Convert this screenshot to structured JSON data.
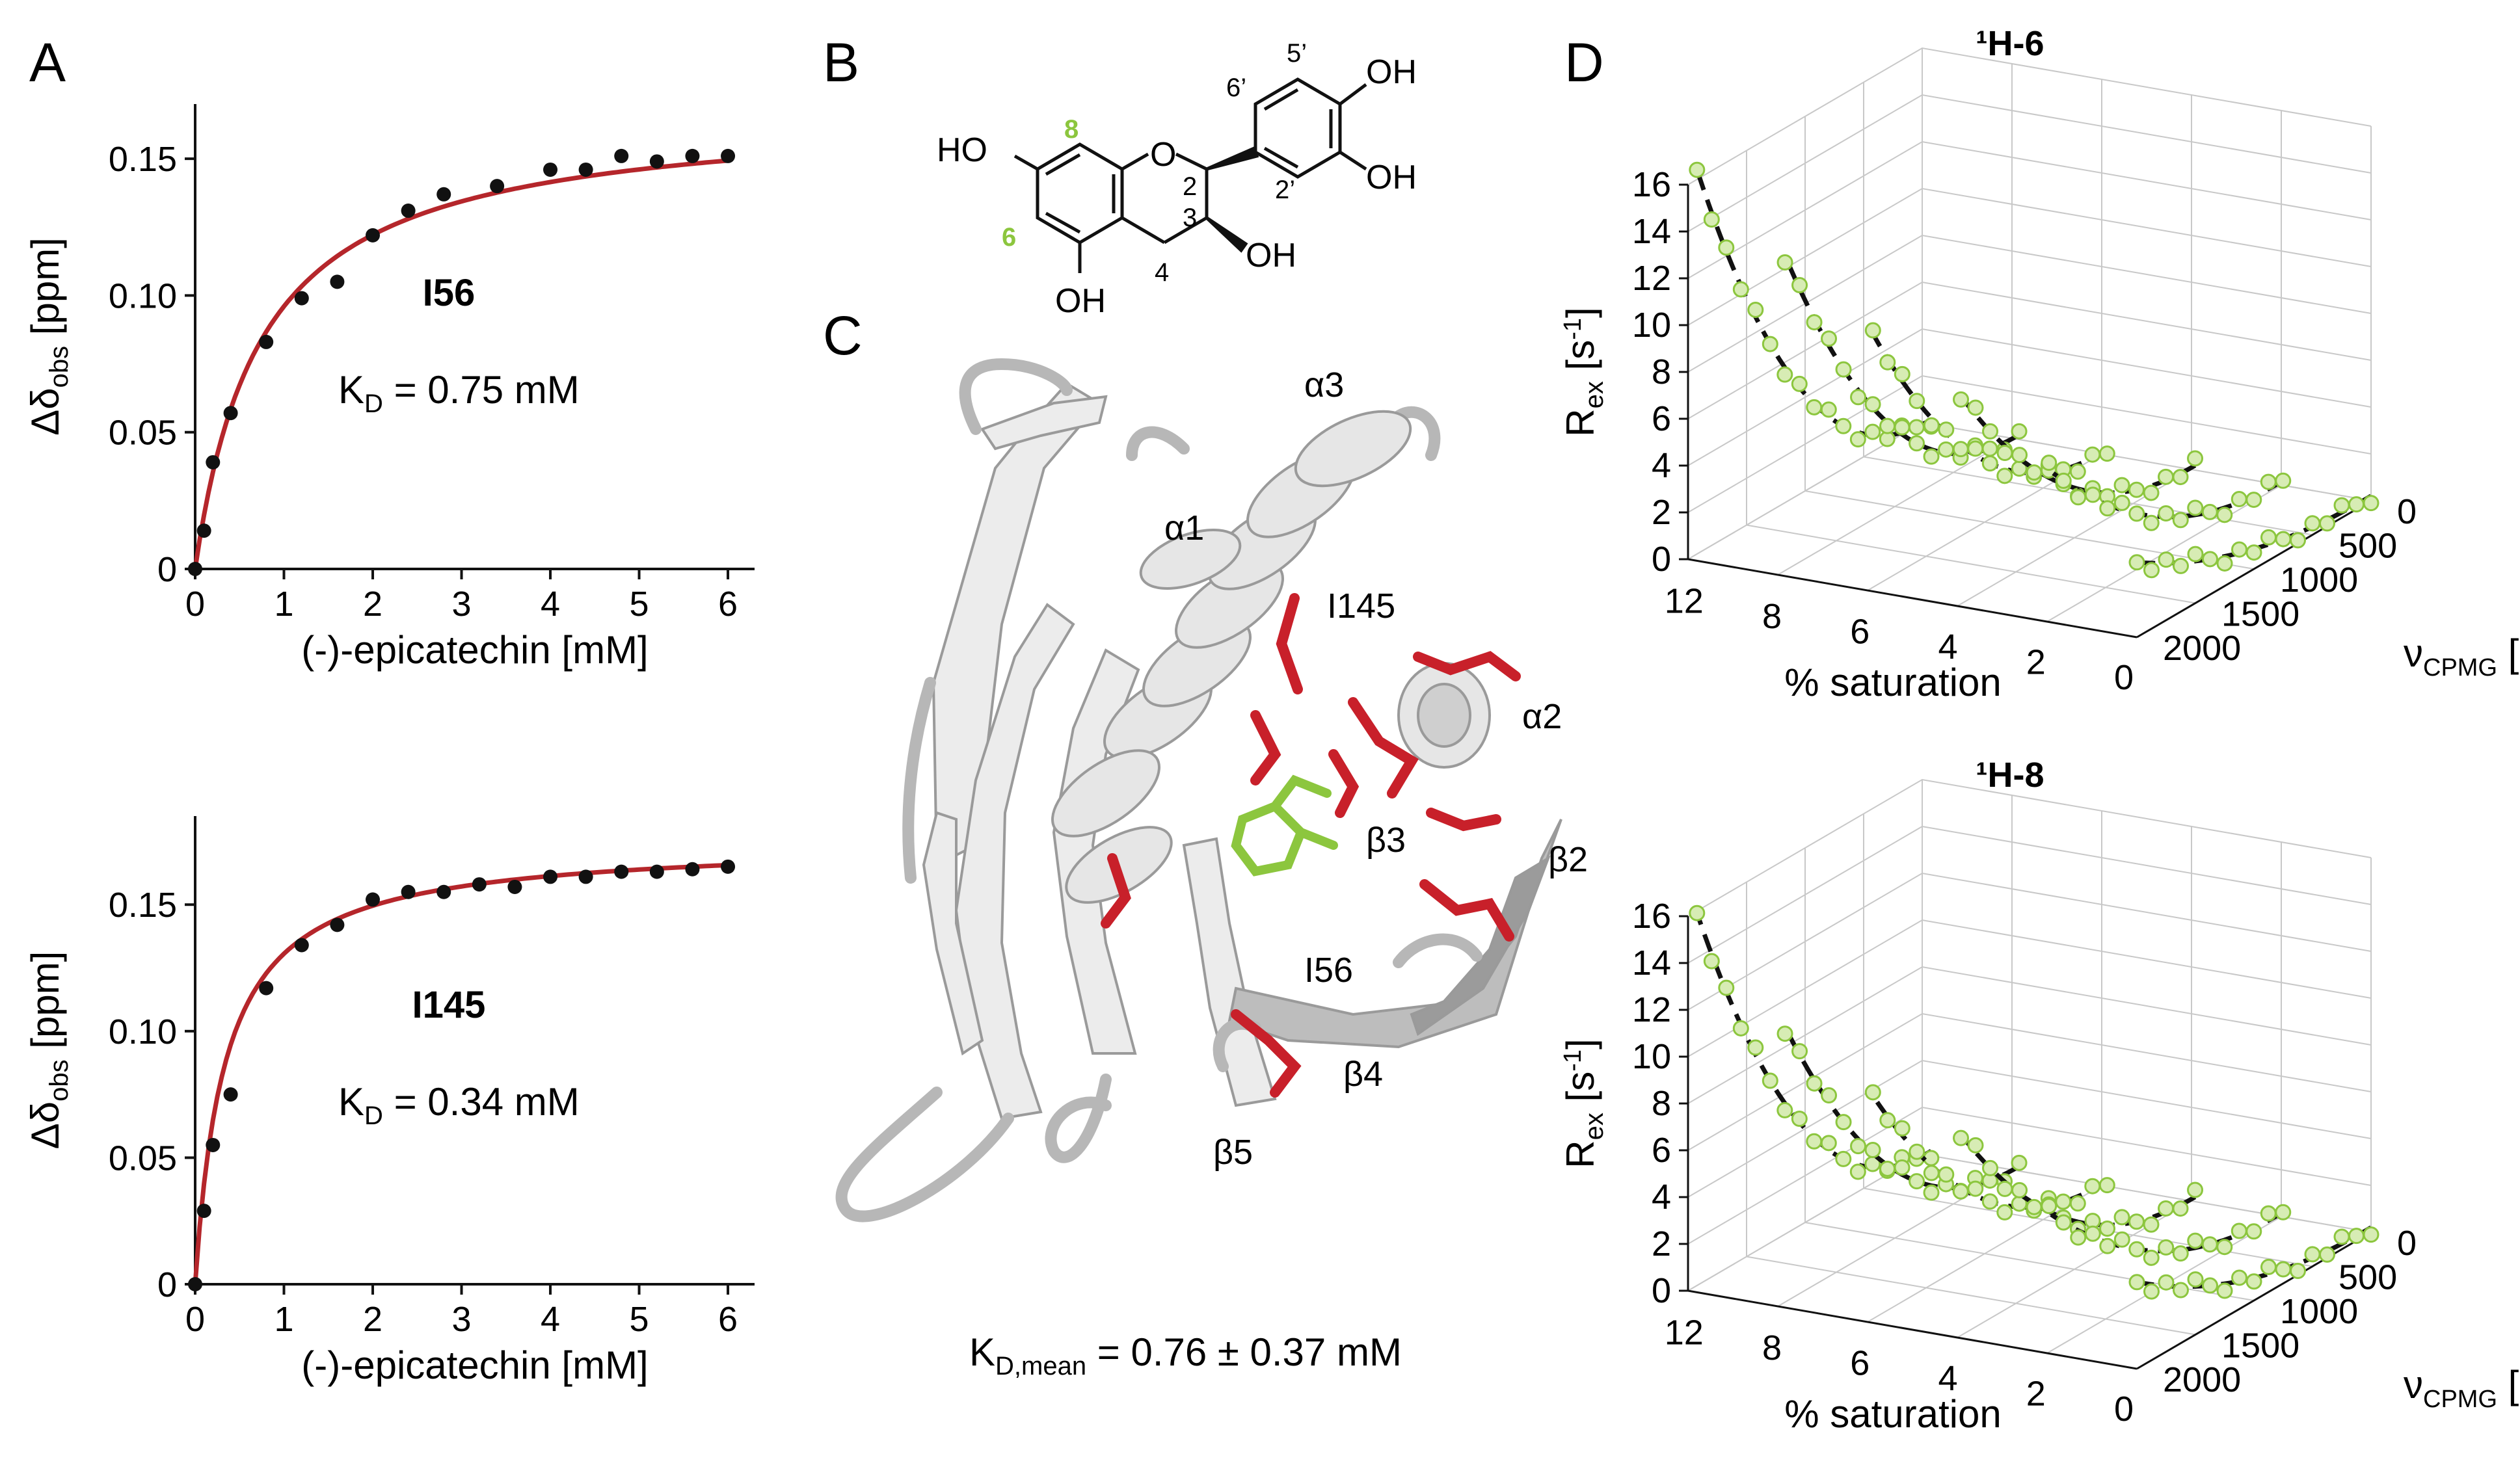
{
  "panels": {
    "a": {
      "letter": "A"
    },
    "b": {
      "letter": "B"
    },
    "c": {
      "letter": "C"
    },
    "d": {
      "letter": "D"
    }
  },
  "chart_data": [
    {
      "type": "scatter",
      "panel": "A-top",
      "residue": "I56",
      "kd_text": "K",
      "kd_sub": "D",
      "kd_value": " = 0.75 mM",
      "xlabel": "(-)-epicatechin [mM]",
      "ylabel_main": "Δδ",
      "ylabel_sub": "obs",
      "ylabel_unit": " [ppm]",
      "xlim": [
        0,
        6.3
      ],
      "ylim": [
        0,
        0.17
      ],
      "xticks": [
        "0",
        "1",
        "2",
        "3",
        "4",
        "5",
        "6"
      ],
      "yticks": [
        "0",
        "0.05",
        "0.10",
        "0.15"
      ],
      "ytick_values": [
        0,
        0.05,
        0.1,
        0.15
      ],
      "fit": {
        "dmax": 0.168,
        "kd": 0.75,
        "color": "#b5262b"
      },
      "points": {
        "x": [
          0,
          0.1,
          0.2,
          0.4,
          0.8,
          1.2,
          1.6,
          2.0,
          2.4,
          2.8,
          3.4,
          4.0,
          4.4,
          4.8,
          5.2,
          5.6,
          6.0
        ],
        "y": [
          0,
          0.014,
          0.039,
          0.057,
          0.083,
          0.099,
          0.105,
          0.122,
          0.131,
          0.137,
          0.14,
          0.146,
          0.146,
          0.151,
          0.149,
          0.151,
          0.151
        ]
      }
    },
    {
      "type": "scatter",
      "panel": "A-bottom",
      "residue": "I145",
      "kd_text": "K",
      "kd_sub": "D",
      "kd_value": " = 0.34 mM",
      "xlabel": "(-)-epicatechin [mM]",
      "ylabel_main": "Δδ",
      "ylabel_sub": "obs",
      "ylabel_unit": " [ppm]",
      "xlim": [
        0,
        6.3
      ],
      "ylim": [
        0,
        0.185
      ],
      "xticks": [
        "0",
        "1",
        "2",
        "3",
        "4",
        "5",
        "6"
      ],
      "yticks": [
        "0",
        "0.05",
        "0.10",
        "0.15"
      ],
      "ytick_values": [
        0,
        0.05,
        0.1,
        0.15
      ],
      "fit": {
        "dmax": 0.175,
        "kd": 0.34,
        "color": "#b5262b"
      },
      "points": {
        "x": [
          0,
          0.1,
          0.2,
          0.4,
          0.8,
          1.2,
          1.6,
          2.0,
          2.4,
          2.8,
          3.2,
          3.6,
          4.0,
          4.4,
          4.8,
          5.2,
          5.6,
          6.0
        ],
        "y": [
          0,
          0.029,
          0.055,
          0.075,
          0.117,
          0.134,
          0.142,
          0.152,
          0.155,
          0.155,
          0.158,
          0.157,
          0.161,
          0.161,
          0.163,
          0.163,
          0.164,
          0.165
        ]
      }
    },
    {
      "type": "line",
      "panel": "D-top",
      "title": "¹H-6",
      "zlabel_main": "R",
      "zlabel_sub": "ex",
      "zlabel_unit": " [s",
      "zlabel_sup": "-1",
      "zlabel_end": "]",
      "xlabel": "% saturation",
      "ylabel_main": "ν",
      "ylabel_sub": "CPMG",
      "ylabel_unit": " [Hz]",
      "zticks": [
        "0",
        "2",
        "4",
        "6",
        "8",
        "10",
        "12",
        "14",
        "16"
      ],
      "sat_ticks": [
        "12",
        "8",
        "6",
        "4",
        "2",
        "0"
      ],
      "nu_ticks": [
        "0",
        "500",
        "1000",
        "1500",
        "2000"
      ],
      "series_top_values": [
        16.5,
        13.5,
        10.8,
        8.8,
        6.3,
        3.0
      ]
    },
    {
      "type": "line",
      "panel": "D-bottom",
      "title": "¹H-8",
      "zlabel_main": "R",
      "zlabel_sub": "ex",
      "zlabel_unit": " [s",
      "zlabel_sup": "-1",
      "zlabel_end": "]",
      "xlabel": "% saturation",
      "ylabel_main": "ν",
      "ylabel_sub": "CPMG",
      "ylabel_unit": " [Hz]",
      "zticks": [
        "0",
        "2",
        "4",
        "6",
        "8",
        "10",
        "12",
        "14",
        "16"
      ],
      "sat_ticks": [
        "12",
        "8",
        "6",
        "4",
        "2",
        "0"
      ],
      "nu_ticks": [
        "0",
        "500",
        "1000",
        "1500",
        "2000"
      ],
      "series_top_values": [
        16.0,
        11.8,
        9.5,
        8.5,
        5.8,
        3.5
      ]
    }
  ],
  "molecule": {
    "labels": {
      "ho_left": "HO",
      "oh_bottom": "OH",
      "oh_3": "OH",
      "oh_4p": "OH",
      "oh_3p": "OH",
      "ring_o": "O"
    },
    "atom_numbers": {
      "n8": "8",
      "n6": "6",
      "n2": "2",
      "n3": "3",
      "n4": "4",
      "n2p": "2’",
      "n5p": "5’",
      "n6p": "6’"
    },
    "highlight_color": "#8cc63e"
  },
  "structure": {
    "labels": {
      "a3": "α3",
      "a1": "α1",
      "i145": "I145",
      "a2": "α2",
      "b2": "β2",
      "b3": "β3",
      "i56": "I56",
      "b4": "β4",
      "b5": "β5"
    },
    "kd_mean_main": "K",
    "kd_mean_sub": "D,mean",
    "kd_mean_value": " = 0.76 ± 0.37 mM",
    "ligand_color": "#8cc63e",
    "residue_color": "#c8202a"
  }
}
